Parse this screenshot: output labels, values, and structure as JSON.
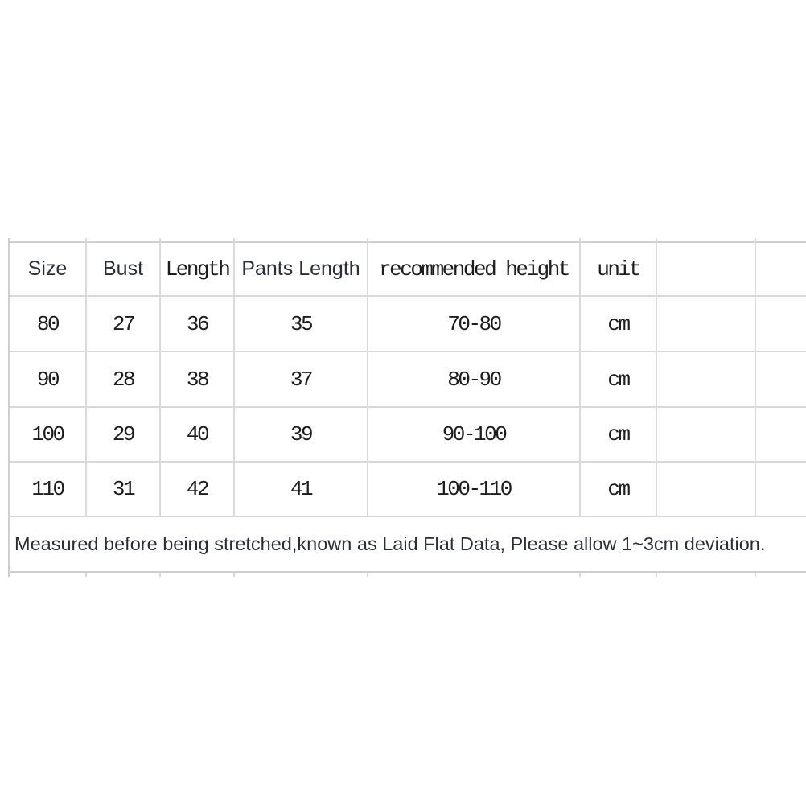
{
  "size_chart": {
    "columns": [
      "Size",
      "Bust",
      "Length",
      "Pants Length",
      "recommended height",
      "unit",
      "",
      ""
    ],
    "rows": [
      [
        "80",
        "27",
        "36",
        "35",
        "70-80",
        "cm",
        "",
        ""
      ],
      [
        "90",
        "28",
        "38",
        "37",
        "80-90",
        "cm",
        "",
        ""
      ],
      [
        "100",
        "29",
        "40",
        "39",
        "90-100",
        "cm",
        "",
        ""
      ],
      [
        "110",
        "31",
        "42",
        "41",
        "100-110",
        "cm",
        "",
        ""
      ]
    ],
    "note": "Measured before being stretched,known as Laid Flat Data, Please allow 1~3cm deviation.",
    "colors": {
      "grid_line": "#d9d9d9",
      "outer_line": "#cfcfcf",
      "mono_text": "#1d1d1d",
      "sans_text": "#2a2e3a",
      "background": "#ffffff"
    }
  }
}
